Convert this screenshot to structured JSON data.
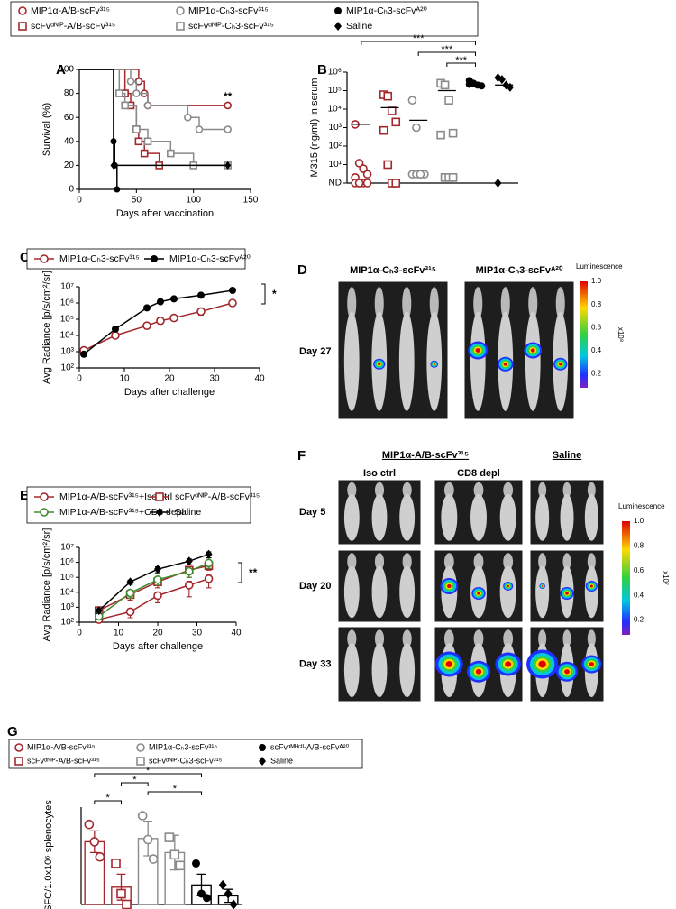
{
  "chart_data": [
    {
      "panel_label": "A",
      "type": "survival",
      "xlabel": "Days after vaccination",
      "ylabel": "Survival (%)",
      "xlim": [
        0,
        150
      ],
      "xticks": [
        0,
        50,
        100,
        150
      ],
      "ylim": [
        0,
        100
      ],
      "yticks": [
        0,
        20,
        40,
        60,
        80,
        100
      ],
      "annotation": "**",
      "series": [
        {
          "name": "MIP1α-A/B-scFv³¹⁵",
          "color": "#a3282d",
          "marker": "circle-open",
          "x": [
            0,
            52,
            57,
            60,
            130
          ],
          "values": [
            100,
            90,
            80,
            70,
            70
          ]
        },
        {
          "name": "scFvᵅᴺᴵᴾ-A/B-scFv³¹⁵",
          "color": "#a3282d",
          "marker": "square-open",
          "x": [
            0,
            40,
            45,
            50,
            52,
            57,
            70
          ],
          "values": [
            100,
            80,
            70,
            50,
            40,
            30,
            20
          ]
        },
        {
          "name": "MIP1α-Cₕ3-scFv³¹⁵",
          "color": "#8a8a8a",
          "marker": "circle-open",
          "x": [
            0,
            45,
            50,
            60,
            95,
            105,
            130
          ],
          "values": [
            100,
            90,
            80,
            70,
            60,
            50,
            50
          ]
        },
        {
          "name": "scFvᵅᴺᴵᴾ-Cₕ3-scFv³¹⁵",
          "color": "#8a8a8a",
          "marker": "square-open",
          "x": [
            0,
            35,
            40,
            50,
            60,
            80,
            100,
            130
          ],
          "values": [
            100,
            80,
            70,
            50,
            40,
            30,
            20,
            20
          ]
        },
        {
          "name": "MIP1α-Cₕ3-scFvᴬ²⁰",
          "color": "#000000",
          "marker": "circle",
          "x": [
            0,
            30,
            31,
            33
          ],
          "values": [
            100,
            40,
            20,
            0
          ]
        },
        {
          "name": "Saline",
          "color": "#000000",
          "marker": "diamond",
          "x": [
            0,
            30,
            130
          ],
          "values": [
            100,
            20,
            20
          ]
        }
      ]
    },
    {
      "panel_label": "B",
      "type": "dotplot",
      "ylabel": "M315 (ng/ml) in serum",
      "log_scale": true,
      "ylim": [
        1,
        1000000
      ],
      "yticks": [
        {
          "value": 1,
          "label": "ND"
        },
        {
          "value": 10,
          "label": "10¹"
        },
        {
          "value": 100,
          "label": "10²"
        },
        {
          "value": 1000,
          "label": "10³"
        },
        {
          "value": 10000,
          "label": "10⁴"
        },
        {
          "value": 100000,
          "label": "10⁵"
        },
        {
          "value": 1000000,
          "label": "10⁶"
        }
      ],
      "groups": [
        {
          "color": "#a3282d",
          "marker": "circle-open",
          "values": [
            1500,
            12,
            6,
            3,
            2,
            1,
            1,
            1,
            1,
            1
          ],
          "mean": 1500
        },
        {
          "color": "#a3282d",
          "marker": "square-open",
          "values": [
            60000,
            50000,
            8000,
            2000,
            700,
            10,
            1,
            1
          ],
          "mean": 12000
        },
        {
          "color": "#8a8a8a",
          "marker": "circle-open",
          "values": [
            30000,
            1000,
            3,
            3,
            3,
            3,
            3
          ],
          "mean": 2500
        },
        {
          "color": "#8a8a8a",
          "marker": "square-open",
          "values": [
            250000,
            200000,
            30000,
            500,
            400,
            2,
            2,
            2
          ],
          "mean": 100000
        },
        {
          "color": "#000000",
          "marker": "circle",
          "values": [
            350000,
            250000,
            200000,
            180000,
            220000
          ],
          "mean": 220000
        },
        {
          "color": "#000000",
          "marker": "diamond",
          "values": [
            500000,
            400000,
            200000,
            150000,
            1
          ],
          "mean": 200000
        }
      ],
      "brackets": [
        {
          "from": 0,
          "to": 4,
          "label": "***"
        },
        {
          "from": 2,
          "to": 4,
          "label": "***"
        },
        {
          "from": 3,
          "to": 4,
          "label": "***"
        }
      ]
    },
    {
      "panel_label": "C",
      "type": "line",
      "xlabel": "Days after challenge",
      "ylabel": "Avg Radiance [p/s/cm²/sr]",
      "log_scale": true,
      "xlim": [
        0,
        40
      ],
      "xticks": [
        0,
        10,
        20,
        30,
        40
      ],
      "ylim": [
        100,
        10000000
      ],
      "yticks": [
        {
          "value": 100,
          "label": "10²"
        },
        {
          "value": 1000,
          "label": "10³"
        },
        {
          "value": 10000,
          "label": "10⁴"
        },
        {
          "value": 100000,
          "label": "10⁵"
        },
        {
          "value": 1000000,
          "label": "10⁶"
        },
        {
          "value": 10000000,
          "label": "10⁷"
        }
      ],
      "annotation": "*",
      "series": [
        {
          "name": "MIP1α-Cₕ3-scFv³¹⁵",
          "color": "#a3282d",
          "marker": "circle-open",
          "x": [
            1,
            8,
            15,
            18,
            21,
            27,
            34
          ],
          "values": [
            1200,
            10000,
            40000,
            80000,
            120000,
            300000,
            1000000
          ],
          "errors": [
            300,
            3000,
            15000,
            30000,
            40000,
            120000,
            350000
          ]
        },
        {
          "name": "MIP1α-Cₕ3-scFvᴬ²⁰",
          "color": "#000000",
          "marker": "circle",
          "x": [
            1,
            8,
            15,
            18,
            21,
            27,
            34
          ],
          "values": [
            700,
            25000,
            500000,
            1200000,
            1800000,
            3000000,
            6000000
          ]
        }
      ]
    },
    {
      "panel_label": "E",
      "type": "line",
      "xlabel": "Days after challenge",
      "ylabel": "Avg Radiance [p/s/cm²/sr]",
      "log_scale": true,
      "xlim": [
        0,
        40
      ],
      "xticks": [
        0,
        10,
        20,
        30,
        40
      ],
      "ylim": [
        100,
        10000000
      ],
      "yticks": [
        {
          "value": 100,
          "label": "10²"
        },
        {
          "value": 1000,
          "label": "10³"
        },
        {
          "value": 10000,
          "label": "10⁴"
        },
        {
          "value": 100000,
          "label": "10⁵"
        },
        {
          "value": 1000000,
          "label": "10⁶"
        },
        {
          "value": 10000000,
          "label": "10⁷"
        }
      ],
      "annotation": "**",
      "series": [
        {
          "name": "MIP1α-A/B-scFv³¹⁵+Iso ctrl",
          "color": "#a3282d",
          "marker": "circle-open",
          "x": [
            5,
            13,
            20,
            28,
            33
          ],
          "values": [
            150,
            500,
            6000,
            30000,
            80000
          ],
          "errors": [
            50,
            300,
            4000,
            25000,
            60000
          ]
        },
        {
          "name": "scFvᵅᴺᴵᴾ-A/B-scFv³¹⁵",
          "color": "#a3282d",
          "marker": "square-open",
          "x": [
            5,
            13,
            20,
            28,
            33
          ],
          "values": [
            600,
            7000,
            50000,
            300000,
            600000
          ],
          "errors": [
            200,
            4000,
            30000,
            200000,
            300000
          ]
        },
        {
          "name": "MIP1α-A/B-scFv³¹⁵+CD8 depl",
          "color": "#3f8a2c",
          "marker": "circle-open",
          "x": [
            5,
            13,
            20,
            28,
            33
          ],
          "values": [
            250,
            9000,
            70000,
            250000,
            900000
          ],
          "errors": [
            100,
            5000,
            40000,
            150000,
            500000
          ]
        },
        {
          "name": "Saline",
          "color": "#000000",
          "marker": "diamond",
          "x": [
            5,
            13,
            20,
            28,
            33
          ],
          "values": [
            600,
            50000,
            350000,
            1200000,
            3500000
          ],
          "errors": [
            200,
            15000,
            150000,
            500000,
            1500000
          ]
        }
      ]
    },
    {
      "panel_label": "G",
      "type": "bar",
      "ylabel": "SFC/1.0x10⁶ splenocytes",
      "ylim": [
        0,
        45
      ],
      "series": [
        {
          "name": "MIP1α-A/B-scFv³¹⁵",
          "color": "#a3282d",
          "marker": "circle-open",
          "value": 29,
          "error": 5,
          "points": [
            37,
            29,
            22
          ]
        },
        {
          "name": "scFvᵅᴺᴵᴾ-A/B-scFv³¹⁵",
          "color": "#a3282d",
          "marker": "square-open",
          "value": 8,
          "error": 6,
          "points": [
            19,
            5,
            0
          ]
        },
        {
          "name": "MIP1α-Cₕ3-scFv³¹⁵",
          "color": "#8a8a8a",
          "marker": "circle-open",
          "value": 30.5,
          "error": 8,
          "points": [
            41,
            30,
            21
          ]
        },
        {
          "name": "scFvᵅᴺᴵᴾ-Cₕ3-scFv³¹⁵",
          "color": "#8a8a8a",
          "marker": "square-open",
          "value": 24,
          "error": 8,
          "points": [
            31,
            23,
            18
          ]
        },
        {
          "name": "scFvᵅᴹᴴᶜᴵᴵ-A/B-scFvᴬ²⁰",
          "color": "#000000",
          "marker": "circle",
          "value": 9,
          "error": 5,
          "points": [
            19,
            5,
            3
          ]
        },
        {
          "name": "Saline",
          "color": "#000000",
          "marker": "diamond",
          "value": 4,
          "error": 3,
          "points": [
            9,
            5,
            0
          ]
        }
      ],
      "brackets": [
        {
          "from": 0,
          "to": 4,
          "label": "*"
        },
        {
          "from": 1,
          "to": 2,
          "label": "*"
        },
        {
          "from": 2,
          "to": 4,
          "label": "*"
        },
        {
          "from": 0,
          "to": 1,
          "label": "*"
        }
      ]
    }
  ],
  "images": [
    {
      "panel_label": "D",
      "titles": [
        "MIP1α-Cₕ3-scFv³¹⁵",
        "MIP1α-Cₕ3-scFvᴬ²⁰"
      ],
      "rows": [
        "Day 27"
      ],
      "colorbar": {
        "title": "Luminescence",
        "ticks": [
          "1.0",
          "0.8",
          "0.6",
          "0.4",
          "0.2"
        ],
        "unit": "x10⁸"
      }
    },
    {
      "panel_label": "F",
      "group_title": "MIP1α-A/B-scFv³¹⁵",
      "titles": [
        "Iso ctrl",
        "CD8 depl",
        "Saline"
      ],
      "rows": [
        "Day 5",
        "Day 20",
        "Day 33"
      ],
      "colorbar": {
        "title": "Luminescence",
        "ticks": [
          "1.0",
          "0.8",
          "0.6",
          "0.4",
          "0.2"
        ],
        "unit": "x10⁷"
      }
    }
  ]
}
